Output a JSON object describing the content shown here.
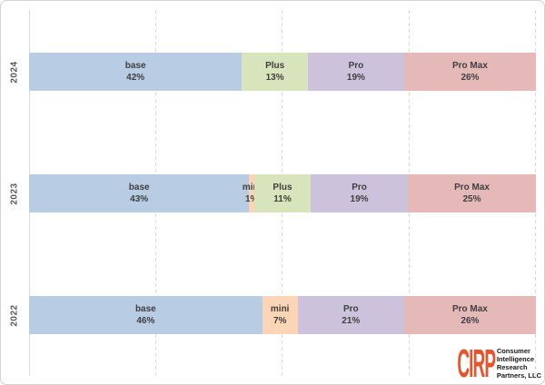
{
  "chart_data": {
    "type": "bar",
    "variant": "horizontal-stacked",
    "title": "",
    "xlabel": "",
    "ylabel": "",
    "xlim_pct": [
      0,
      100
    ],
    "gridlines_pct": [
      25,
      50,
      75,
      100
    ],
    "grid": "dashed-vertical",
    "legend_position": "none",
    "categories": [
      "2024",
      "2023",
      "2022"
    ],
    "segment_names": [
      "base",
      "mini",
      "Plus",
      "Pro",
      "Pro Max"
    ],
    "series": [
      {
        "year": "2024",
        "segments": [
          {
            "label": "base",
            "pct": 42
          },
          {
            "label": "Plus",
            "pct": 13
          },
          {
            "label": "Pro",
            "pct": 19
          },
          {
            "label": "Pro Max",
            "pct": 26
          }
        ]
      },
      {
        "year": "2023",
        "segments": [
          {
            "label": "base",
            "pct": 43
          },
          {
            "label": "mini",
            "pct": 1
          },
          {
            "label": "Plus",
            "pct": 11
          },
          {
            "label": "Pro",
            "pct": 19
          },
          {
            "label": "Pro Max",
            "pct": 25
          }
        ]
      },
      {
        "year": "2022",
        "segments": [
          {
            "label": "base",
            "pct": 46
          },
          {
            "label": "mini",
            "pct": 7
          },
          {
            "label": "Pro",
            "pct": 21
          },
          {
            "label": "Pro Max",
            "pct": 26
          }
        ]
      }
    ],
    "colors": {
      "base": "#B8CCE4",
      "mini": "#FBD5B5",
      "Plus": "#D7E4BC",
      "Pro": "#CCC2DC",
      "Pro Max": "#E5B9B8"
    },
    "label_color": "#3F3F3F",
    "axis_label_color": "#595959"
  },
  "logo": {
    "acronym": "CIRP",
    "color": "#E8532B",
    "lines": [
      "Consumer",
      "Intelligence",
      "Research",
      "Partners, LLC"
    ]
  }
}
